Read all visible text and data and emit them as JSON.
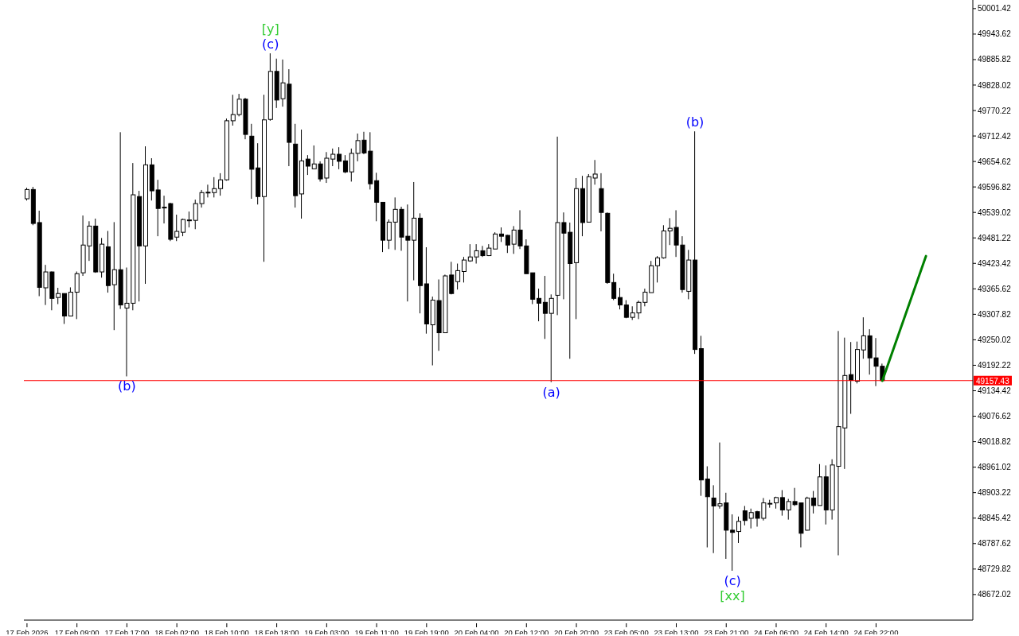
{
  "chart_data": {
    "type": "candlestick",
    "categories": [
      "17 Feb 2026",
      null,
      null,
      null,
      null,
      null,
      null,
      null,
      "17 Feb 09:00",
      null,
      null,
      null,
      null,
      null,
      null,
      null,
      "17 Feb 17:00",
      null,
      null,
      null,
      null,
      null,
      null,
      null,
      "18 Feb 02:00",
      null,
      null,
      null,
      null,
      null,
      null,
      null,
      "18 Feb 10:00",
      null,
      null,
      null,
      null,
      null,
      null,
      null,
      "18 Feb 18:00",
      null,
      null,
      null,
      null,
      null,
      null,
      null,
      "19 Feb 03:00",
      null,
      null,
      null,
      null,
      null,
      null,
      null,
      "19 Feb 11:00",
      null,
      null,
      null,
      null,
      null,
      null,
      null,
      "19 Feb 19:00",
      null,
      null,
      null,
      null,
      null,
      null,
      null,
      "20 Feb 04:00",
      null,
      null,
      null,
      null,
      null,
      null,
      null,
      "20 Feb 12:00",
      null,
      null,
      null,
      null,
      null,
      null,
      null,
      "20 Feb 20:00",
      null,
      null,
      null,
      null,
      null,
      null,
      null,
      "23 Feb 05:00",
      null,
      null,
      null,
      null,
      null,
      null,
      null,
      "23 Feb 13:00",
      null,
      null,
      null,
      null,
      null,
      null,
      null,
      "23 Feb 21:00",
      null,
      null,
      null,
      null,
      null,
      null,
      null,
      "24 Feb 06:00",
      null,
      null,
      null,
      null,
      null,
      null,
      null,
      "24 Feb 14:00",
      null,
      null,
      null,
      null,
      null,
      null,
      null,
      "24 Feb 22:00",
      null,
      null,
      null,
      null,
      null,
      null,
      null,
      null,
      null,
      null,
      null,
      null,
      null,
      null,
      null
    ],
    "ohlc": [
      [
        49570,
        49595,
        49566,
        49591
      ],
      [
        49591,
        49597,
        49510,
        49514
      ],
      [
        49516,
        49543,
        49349,
        49369
      ],
      [
        49368,
        49420,
        49329,
        49404
      ],
      [
        49404,
        49405,
        49317,
        49344
      ],
      [
        49346,
        49368,
        49331,
        49355
      ],
      [
        49355,
        49355,
        49286,
        49304
      ],
      [
        49304,
        49369,
        49304,
        49358
      ],
      [
        49358,
        49405,
        49297,
        49400
      ],
      [
        49402,
        49532,
        49395,
        49465
      ],
      [
        49463,
        49519,
        49429,
        49508
      ],
      [
        49508,
        49525,
        49402,
        49404
      ],
      [
        49404,
        49481,
        49391,
        49467
      ],
      [
        49461,
        49497,
        49357,
        49373
      ],
      [
        49375,
        49517,
        49272,
        49409
      ],
      [
        49409,
        49721,
        49320,
        49329
      ],
      [
        49322,
        49414,
        49167,
        49333
      ],
      [
        49333,
        49651,
        49317,
        49579
      ],
      [
        49575,
        49588,
        49337,
        49463
      ],
      [
        49463,
        49689,
        49377,
        49647
      ],
      [
        49647,
        49662,
        49566,
        49588
      ],
      [
        49590,
        49613,
        49485,
        49548
      ],
      [
        49550,
        49577,
        49514,
        49550
      ],
      [
        49559,
        49561,
        49474,
        49478
      ],
      [
        49483,
        49534,
        49474,
        49496
      ],
      [
        49494,
        49525,
        49485,
        49523
      ],
      [
        49521,
        49541,
        49505,
        49521
      ],
      [
        49521,
        49568,
        49501,
        49559
      ],
      [
        49559,
        49590,
        49550,
        49584
      ],
      [
        49584,
        49602,
        49573,
        49584
      ],
      [
        49584,
        49619,
        49573,
        49593
      ],
      [
        49593,
        49628,
        49577,
        49613
      ],
      [
        49613,
        49752,
        49611,
        49747
      ],
      [
        49747,
        49806,
        49736,
        49761
      ],
      [
        49761,
        49808,
        49757,
        49796
      ],
      [
        49796,
        49799,
        49705,
        49716
      ],
      [
        49712,
        49740,
        49570,
        49637
      ],
      [
        49640,
        49696,
        49557,
        49575
      ],
      [
        49575,
        49806,
        49427,
        49749
      ],
      [
        49750,
        49900,
        49747,
        49859
      ],
      [
        49859,
        49888,
        49776,
        49794
      ],
      [
        49797,
        49886,
        49779,
        49833
      ],
      [
        49830,
        49864,
        49644,
        49698
      ],
      [
        49694,
        49740,
        49550,
        49577
      ],
      [
        49581,
        49727,
        49525,
        49656
      ],
      [
        49660,
        49669,
        49624,
        49644
      ],
      [
        49638,
        49691,
        49637,
        49649
      ],
      [
        49649,
        49655,
        49609,
        49615
      ],
      [
        49617,
        49676,
        49606,
        49662
      ],
      [
        49660,
        49684,
        49644,
        49671
      ],
      [
        49671,
        49687,
        49637,
        49655
      ],
      [
        49656,
        49669,
        49628,
        49631
      ],
      [
        49631,
        49684,
        49609,
        49673
      ],
      [
        49673,
        49718,
        49655,
        49702
      ],
      [
        49703,
        49722,
        49671,
        49674
      ],
      [
        49678,
        49721,
        49591,
        49604
      ],
      [
        49611,
        49629,
        49519,
        49562
      ],
      [
        49562,
        49562,
        49449,
        49476
      ],
      [
        49476,
        49523,
        49456,
        49517
      ],
      [
        49517,
        49573,
        49454,
        49546
      ],
      [
        49546,
        49552,
        49452,
        49483
      ],
      [
        49485,
        49557,
        49337,
        49476
      ],
      [
        49476,
        49608,
        49385,
        49526
      ],
      [
        49526,
        49537,
        49310,
        49373
      ],
      [
        49377,
        49460,
        49264,
        49286
      ],
      [
        49284,
        49348,
        49192,
        49340
      ],
      [
        49339,
        49387,
        49225,
        49266
      ],
      [
        49266,
        49398,
        49266,
        49395
      ],
      [
        49397,
        49427,
        49353,
        49355
      ],
      [
        49382,
        49423,
        49364,
        49407
      ],
      [
        49405,
        49438,
        49380,
        49431
      ],
      [
        49429,
        49467,
        49427,
        49438
      ],
      [
        49438,
        49467,
        49423,
        49452
      ],
      [
        49452,
        49463,
        49438,
        49441
      ],
      [
        49441,
        49467,
        49440,
        49458
      ],
      [
        49456,
        49494,
        49456,
        49490
      ],
      [
        49490,
        49505,
        49472,
        49485
      ],
      [
        49487,
        49488,
        49447,
        49465
      ],
      [
        49467,
        49508,
        49445,
        49499
      ],
      [
        49499,
        49544,
        49456,
        49463
      ],
      [
        49463,
        49478,
        49400,
        49400
      ],
      [
        49402,
        49402,
        49331,
        49342
      ],
      [
        49344,
        49366,
        49292,
        49333
      ],
      [
        49335,
        49395,
        49252,
        49310
      ],
      [
        49310,
        49353,
        49154,
        49344
      ],
      [
        49351,
        49711,
        49306,
        49516
      ],
      [
        49516,
        49539,
        49342,
        49492
      ],
      [
        49494,
        49516,
        49207,
        49423
      ],
      [
        49425,
        49617,
        49297,
        49593
      ],
      [
        49593,
        49622,
        49485,
        49516
      ],
      [
        49517,
        49626,
        49517,
        49620
      ],
      [
        49617,
        49658,
        49602,
        49626
      ],
      [
        49593,
        49628,
        49496,
        49539
      ],
      [
        49537,
        49539,
        49377,
        49380
      ],
      [
        49380,
        49400,
        49340,
        49344
      ],
      [
        49346,
        49368,
        49319,
        49329
      ],
      [
        49329,
        49340,
        49299,
        49301
      ],
      [
        49301,
        49326,
        49295,
        49311
      ],
      [
        49311,
        49339,
        49297,
        49335
      ],
      [
        49335,
        49366,
        49326,
        49358
      ],
      [
        49357,
        49429,
        49357,
        49418
      ],
      [
        49418,
        49440,
        49380,
        49436
      ],
      [
        49436,
        49510,
        49434,
        49497
      ],
      [
        49497,
        49526,
        49465,
        49503
      ],
      [
        49505,
        49544,
        49438,
        49465
      ],
      [
        49465,
        49485,
        49357,
        49364
      ],
      [
        49360,
        49454,
        49342,
        49431
      ],
      [
        49431,
        49723,
        49218,
        49228
      ],
      [
        49230,
        49259,
        48896,
        48932
      ],
      [
        48934,
        48963,
        48779,
        48894
      ],
      [
        48891,
        48920,
        48766,
        48873
      ],
      [
        48873,
        49017,
        48867,
        48878
      ],
      [
        48880,
        48903,
        48753,
        48818
      ],
      [
        48818,
        48854,
        48726,
        48813
      ],
      [
        48815,
        48849,
        48789,
        48838
      ],
      [
        48862,
        48873,
        48829,
        48840
      ],
      [
        48845,
        48867,
        48822,
        48858
      ],
      [
        48860,
        48862,
        48826,
        48845
      ],
      [
        48845,
        48891,
        48840,
        48880
      ],
      [
        48878,
        48887,
        48869,
        48878
      ],
      [
        48880,
        48894,
        48867,
        48892
      ],
      [
        48892,
        48909,
        48851,
        48864
      ],
      [
        48864,
        48889,
        48842,
        48883
      ],
      [
        48883,
        48914,
        48873,
        48876
      ],
      [
        48880,
        48880,
        48779,
        48811
      ],
      [
        48818,
        48894,
        48817,
        48891
      ],
      [
        48891,
        48907,
        48856,
        48874
      ],
      [
        48874,
        48968,
        48874,
        48939
      ],
      [
        48939,
        48965,
        48831,
        48864
      ],
      [
        48864,
        48979,
        48842,
        48966
      ],
      [
        48963,
        49270,
        48761,
        49053
      ],
      [
        49050,
        49255,
        48957,
        49169
      ],
      [
        49171,
        49245,
        49082,
        49158
      ],
      [
        49156,
        49246,
        49151,
        49228
      ],
      [
        49227,
        49301,
        49207,
        49259
      ],
      [
        49259,
        49274,
        49171,
        49209
      ],
      [
        49209,
        49254,
        49145,
        49190
      ],
      [
        49190,
        49196,
        49157.43,
        49157.43
      ],
      null,
      null,
      null,
      null,
      null,
      null,
      null,
      null,
      null,
      null,
      null,
      null,
      null,
      null
    ],
    "series": [
      {
        "type": "line",
        "color": "#008000",
        "values": [
          null,
          null,
          null,
          null,
          null,
          null,
          null,
          null,
          null,
          null,
          null,
          null,
          null,
          null,
          null,
          null,
          null,
          null,
          null,
          null,
          null,
          null,
          null,
          null,
          null,
          null,
          null,
          null,
          null,
          null,
          null,
          null,
          null,
          null,
          null,
          null,
          null,
          null,
          null,
          null,
          null,
          null,
          null,
          null,
          null,
          null,
          null,
          null,
          null,
          null,
          null,
          null,
          null,
          null,
          null,
          null,
          null,
          null,
          null,
          null,
          null,
          null,
          null,
          null,
          null,
          null,
          null,
          null,
          null,
          null,
          null,
          null,
          null,
          null,
          null,
          null,
          null,
          null,
          null,
          null,
          null,
          null,
          null,
          null,
          null,
          null,
          null,
          null,
          null,
          null,
          null,
          null,
          null,
          null,
          null,
          null,
          null,
          null,
          null,
          null,
          null,
          null,
          null,
          null,
          null,
          null,
          null,
          null,
          null,
          null,
          null,
          null,
          null,
          null,
          null,
          null,
          null,
          null,
          null,
          null,
          null,
          null,
          null,
          null,
          null,
          null,
          null,
          null,
          null,
          null,
          null,
          null,
          null,
          null,
          null,
          null,
          null,
          49157,
          null,
          null,
          null,
          null,
          null,
          null,
          49440,
          null,
          null,
          null,
          null,
          null,
          null,
          null
        ]
      }
    ],
    "ylim": [
      48614,
      50021
    ],
    "yticks": [
      48672.02,
      48729.82,
      48787.62,
      48845.42,
      48903.22,
      48961.02,
      49018.82,
      49076.62,
      49134.42,
      49192.22,
      49250.02,
      49307.82,
      49365.62,
      49423.42,
      49481.22,
      49539.02,
      49596.82,
      49654.62,
      49712.42,
      49770.22,
      49828.02,
      49885.82,
      49943.62,
      50001.42
    ],
    "ref_lines": [
      {
        "axis": "y",
        "value": 49157.43,
        "label": "49157.43",
        "color": "#ff0000"
      }
    ],
    "annotations": [
      {
        "text": "(c)",
        "y": 49900
      },
      {
        "text": "[y]",
        "y": 49900
      },
      {
        "text": "(b)",
        "y": 49167
      },
      {
        "text": "(a)",
        "y": 49154
      },
      {
        "text": "(b)",
        "y": 49723
      },
      {
        "text": "(c)",
        "y": 48726
      },
      {
        "text": "[xx]",
        "y": 48726
      }
    ]
  }
}
